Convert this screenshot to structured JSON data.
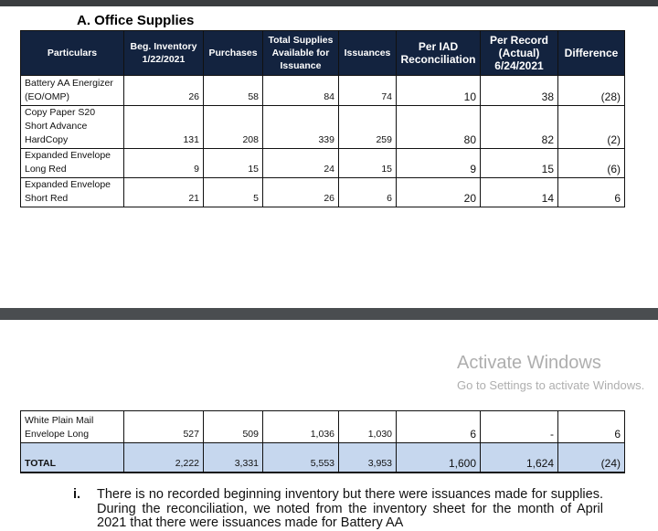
{
  "section_title": "A. Office Supplies",
  "headers": [
    "Particulars",
    "Beg. Inventory 1/22/2021",
    "Purchases",
    "Total Supplies Available for Issuance",
    "Issuances",
    "Per IAD Reconciliation",
    "Per Record (Actual) 6/24/2021",
    "Difference"
  ],
  "rows": [
    {
      "name": "Battery AA Energizer (EO/OMP)",
      "vals": [
        "26",
        "58",
        "84",
        "74",
        "10",
        "38",
        "(28)"
      ]
    },
    {
      "name": "Copy Paper S20 Short Advance HardCopy",
      "vals": [
        "131",
        "208",
        "339",
        "259",
        "80",
        "82",
        "(2)"
      ]
    },
    {
      "name": "Expanded Envelope Long Red",
      "vals": [
        "9",
        "15",
        "24",
        "15",
        "9",
        "15",
        "(6)"
      ]
    },
    {
      "name": "Expanded Envelope Short Red",
      "vals": [
        "21",
        "5",
        "26",
        "6",
        "20",
        "14",
        "6"
      ]
    }
  ],
  "rows2": [
    {
      "name": "White Plain Mail Envelope Long",
      "vals": [
        "527",
        "509",
        "1,036",
        "1,030",
        "6",
        "-",
        "6"
      ]
    }
  ],
  "total": {
    "name": "TOTAL",
    "vals": [
      "2,222",
      "3,331",
      "5,553",
      "3,953",
      "1,600",
      "1,624",
      "(24)"
    ]
  },
  "note": {
    "marker": "i.",
    "text": "There is no recorded beginning inventory but there were issuances made for supplies. During the reconciliation, we noted from the inventory sheet for the month of April 2021 that there were issuances made for Battery AA"
  },
  "watermark": {
    "line1": "Activate Windows",
    "line2": "Go to Settings to activate Windows."
  },
  "colors": {
    "header_bg": "#13233f",
    "total_bg": "#c6d7ee"
  }
}
